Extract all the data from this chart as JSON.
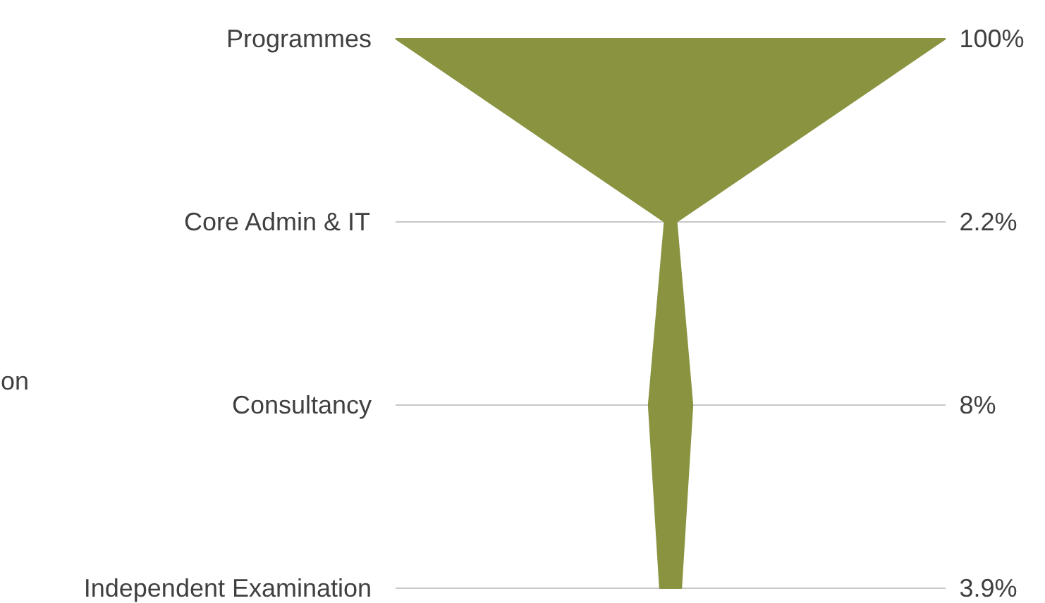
{
  "chart_data": {
    "type": "other",
    "categories": [
      "Programmes",
      "Core Admin & IT",
      "Consultancy",
      "Independent Examination"
    ],
    "values": [
      100,
      2.2,
      8,
      3.9
    ],
    "value_labels": [
      "100%",
      "2.2%",
      "8%",
      "3.9%"
    ],
    "color": "#8a9440",
    "annotations": [
      "on"
    ]
  }
}
